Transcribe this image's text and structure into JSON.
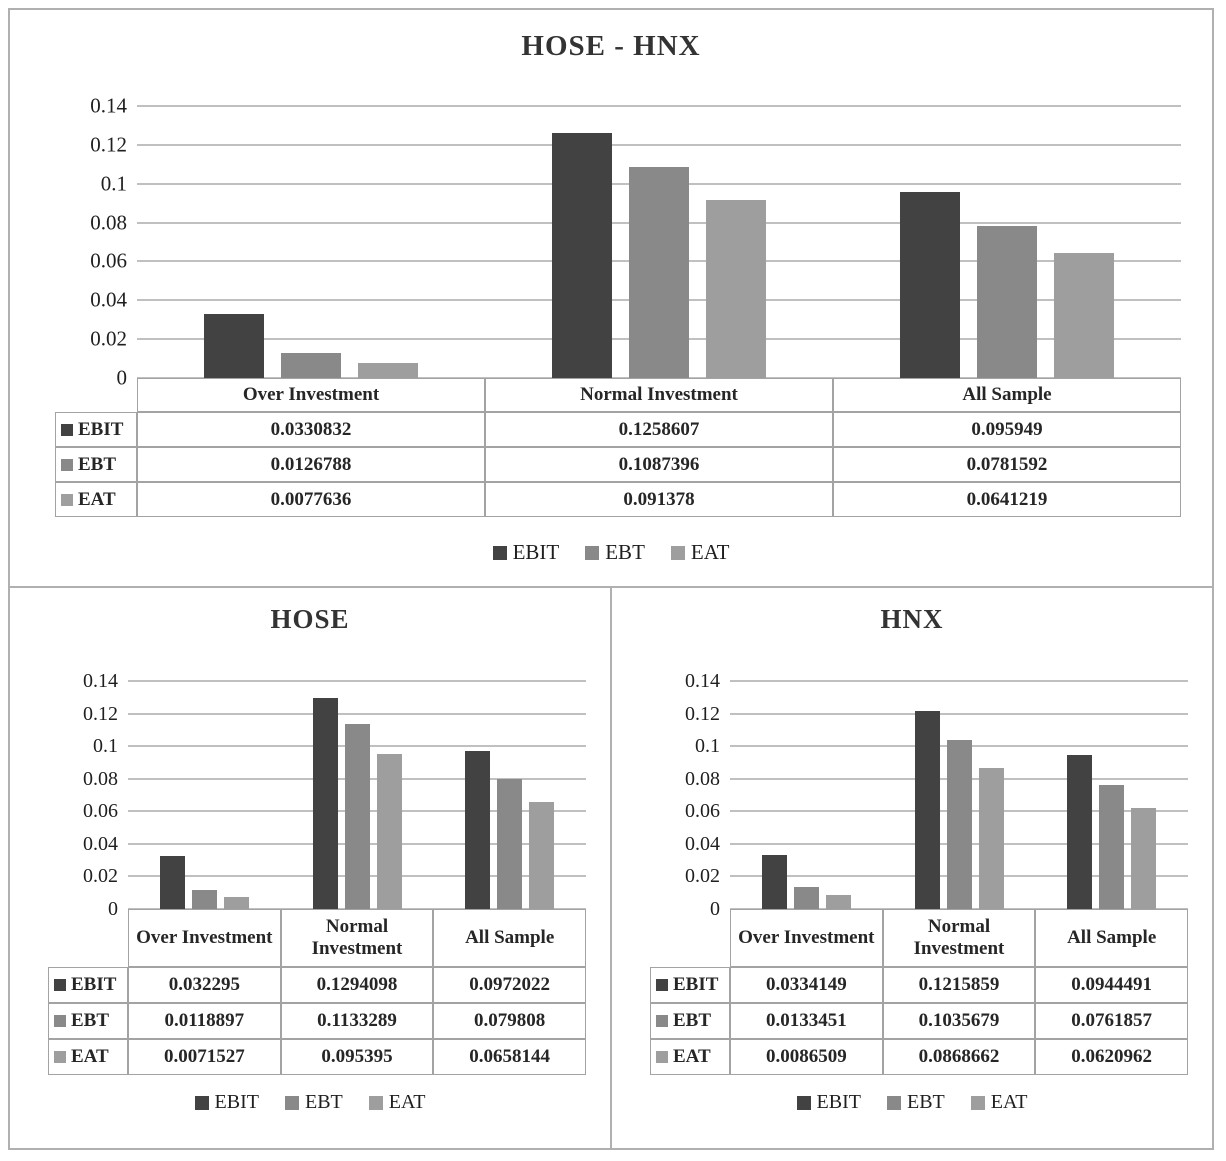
{
  "colors": {
    "series": {
      "EBIT": "#424242",
      "EBT": "#898989",
      "EAT": "#9e9e9e"
    },
    "gridline": "#c0c0c0",
    "table_border": "#a3a3a3",
    "frame_border": "#b0b0b0",
    "text": "#262626"
  },
  "chart_data": [
    {
      "type": "bar",
      "title": "HOSE - HNX",
      "categories": [
        "Over Investment",
        "Normal Investment",
        "All Sample"
      ],
      "series": [
        {
          "name": "EBIT",
          "values": [
            0.0330832,
            0.1258607,
            0.095949
          ],
          "display": [
            "0.0330832",
            "0.1258607",
            "0.095949"
          ]
        },
        {
          "name": "EBT",
          "values": [
            0.0126788,
            0.1087396,
            0.0781592
          ],
          "display": [
            "0.0126788",
            "0.1087396",
            "0.0781592"
          ]
        },
        {
          "name": "EAT",
          "values": [
            0.0077636,
            0.091378,
            0.0641219
          ],
          "display": [
            "0.0077636",
            "0.091378",
            "0.0641219"
          ]
        }
      ],
      "ylim": [
        0,
        0.14
      ],
      "y_ticks": [
        "0.14",
        "0.12",
        "0.1",
        "0.08",
        "0.06",
        "0.04",
        "0.02",
        "0"
      ],
      "legend": [
        "EBIT",
        "EBT",
        "EAT"
      ],
      "legend_position": "bottom",
      "grid": true,
      "data_table_shown": true
    },
    {
      "type": "bar",
      "title": "HOSE",
      "categories": [
        "Over Investment",
        "Normal Investment",
        "All Sample"
      ],
      "series": [
        {
          "name": "EBIT",
          "values": [
            0.032295,
            0.1294098,
            0.0972022
          ],
          "display": [
            "0.032295",
            "0.1294098",
            "0.0972022"
          ]
        },
        {
          "name": "EBT",
          "values": [
            0.0118897,
            0.1133289,
            0.079808
          ],
          "display": [
            "0.0118897",
            "0.1133289",
            "0.079808"
          ]
        },
        {
          "name": "EAT",
          "values": [
            0.0071527,
            0.095395,
            0.0658144
          ],
          "display": [
            "0.0071527",
            "0.095395",
            "0.0658144"
          ]
        }
      ],
      "ylim": [
        0,
        0.14
      ],
      "y_ticks": [
        "0.14",
        "0.12",
        "0.1",
        "0.08",
        "0.06",
        "0.04",
        "0.02",
        "0"
      ],
      "legend": [
        "EBIT",
        "EBT",
        "EAT"
      ],
      "legend_position": "bottom",
      "grid": true,
      "data_table_shown": true
    },
    {
      "type": "bar",
      "title": "HNX",
      "categories": [
        "Over Investment",
        "Normal Investment",
        "All Sample"
      ],
      "series": [
        {
          "name": "EBIT",
          "values": [
            0.0334149,
            0.1215859,
            0.0944491
          ],
          "display": [
            "0.0334149",
            "0.1215859",
            "0.0944491"
          ]
        },
        {
          "name": "EBT",
          "values": [
            0.0133451,
            0.1035679,
            0.0761857
          ],
          "display": [
            "0.0133451",
            "0.1035679",
            "0.0761857"
          ]
        },
        {
          "name": "EAT",
          "values": [
            0.0086509,
            0.0868662,
            0.0620962
          ],
          "display": [
            "0.0086509",
            "0.0868662",
            "0.0620962"
          ]
        }
      ],
      "ylim": [
        0,
        0.14
      ],
      "y_ticks": [
        "0.14",
        "0.12",
        "0.1",
        "0.08",
        "0.06",
        "0.04",
        "0.02",
        "0"
      ],
      "legend": [
        "EBIT",
        "EBT",
        "EAT"
      ],
      "legend_position": "bottom",
      "grid": true,
      "data_table_shown": true
    }
  ]
}
